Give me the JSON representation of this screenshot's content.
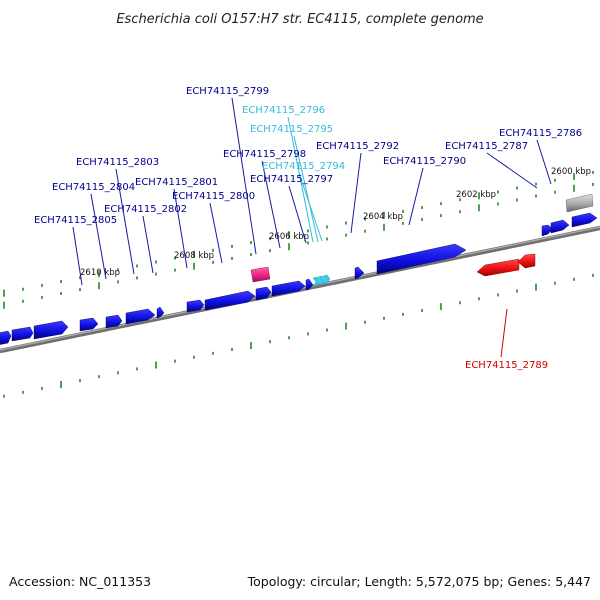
{
  "title": "Escherichia coli O157:H7 str. EC4115, complete genome",
  "footer": {
    "accession": "Accession: NC_011353",
    "summary": "Topology: circular; Length: 5,572,075 bp; Genes: 5,447"
  },
  "colors": {
    "gene": "#1010e0",
    "gene_dark": "#00008b",
    "rna": "#33ccee",
    "pseudo": "#ee2288",
    "reverse_gene": "#ee1111",
    "reverse_label": "#cc0000",
    "other": "#a9a9a9",
    "tick": "#228b22",
    "backbone": "#808080"
  },
  "ruler_ticks": [
    "2600 kbp",
    "2602 kbp",
    "2604 kbp",
    "2606 kbp",
    "2608 kbp",
    "2610 kbp"
  ],
  "gene_labels": [
    {
      "name": "ECH74115_2799",
      "kind": "gene"
    },
    {
      "name": "ECH74115_2796",
      "kind": "rna"
    },
    {
      "name": "ECH74115_2795",
      "kind": "rna"
    },
    {
      "name": "ECH74115_2798",
      "kind": "gene"
    },
    {
      "name": "ECH74115_2794",
      "kind": "rna"
    },
    {
      "name": "ECH74115_2797",
      "kind": "gene"
    },
    {
      "name": "ECH74115_2792",
      "kind": "gene"
    },
    {
      "name": "ECH74115_2790",
      "kind": "gene"
    },
    {
      "name": "ECH74115_2787",
      "kind": "gene"
    },
    {
      "name": "ECH74115_2786",
      "kind": "gene"
    },
    {
      "name": "ECH74115_2803",
      "kind": "gene"
    },
    {
      "name": "ECH74115_2804",
      "kind": "gene"
    },
    {
      "name": "ECH74115_2801",
      "kind": "gene"
    },
    {
      "name": "ECH74115_2800",
      "kind": "gene"
    },
    {
      "name": "ECH74115_2802",
      "kind": "gene"
    },
    {
      "name": "ECH74115_2805",
      "kind": "gene"
    },
    {
      "name": "ECH74115_2789",
      "kind": "reverse"
    }
  ]
}
